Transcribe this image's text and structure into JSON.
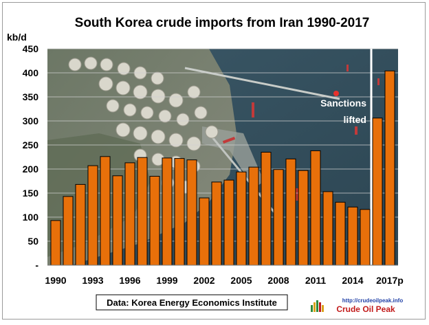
{
  "chart_data": {
    "type": "bar",
    "title": "South Korea crude imports from Iran 1990-2017",
    "ylabel": "kb/d",
    "xlabel": "",
    "ylim": [
      0,
      450
    ],
    "yticks": [
      "-",
      "50",
      "100",
      "150",
      "200",
      "250",
      "300",
      "350",
      "400",
      "450"
    ],
    "grid": true,
    "categories": [
      "1990",
      "1991",
      "1992",
      "1993",
      "1994",
      "1995",
      "1996",
      "1997",
      "1998",
      "1999",
      "2000",
      "2001",
      "2002",
      "2003",
      "2004",
      "2005",
      "2006",
      "2007",
      "2008",
      "2009",
      "2010",
      "2011",
      "2012",
      "2013",
      "2014",
      "2015",
      "2016",
      "2017p"
    ],
    "xtick_labels": [
      "1990",
      "1993",
      "1996",
      "1999",
      "2002",
      "2005",
      "2008",
      "2011",
      "2014",
      "2017p"
    ],
    "values": [
      93,
      143,
      168,
      207,
      226,
      186,
      213,
      224,
      185,
      223,
      222,
      219,
      140,
      173,
      177,
      194,
      204,
      235,
      199,
      221,
      197,
      238,
      153,
      131,
      121,
      116,
      306,
      404
    ],
    "bar_color": "#e8700a",
    "annotation": {
      "text_line1": "Sanctions",
      "text_line2": "lifted",
      "after_category": "2015"
    },
    "source_text": "Data: Korea Energy Economics Institute",
    "logo": {
      "url_text": "http://crudeoilpeak.info",
      "name": "Crude Oil Peak"
    }
  }
}
